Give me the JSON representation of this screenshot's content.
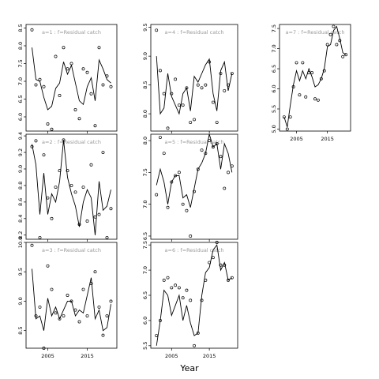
{
  "figure": {
    "xlabel": "Year"
  },
  "chart_data": [
    {
      "type": "scatter",
      "title": "a=1  :  f=Residual catch",
      "x_tick_labels": [
        "2005",
        "2015"
      ],
      "xlim": [
        1999.5,
        2022.5
      ],
      "ylim": [
        5.6,
        8.6
      ],
      "y_ticks": [
        6.0,
        6.5,
        7.0,
        7.5,
        8.0,
        8.5
      ],
      "y_tick_labels": [
        "6.0",
        "6.5",
        "7.0",
        "7.5",
        "8.0",
        "8.5"
      ],
      "x": [
        2001,
        2002,
        2003,
        2004,
        2005,
        2006,
        2007,
        2008,
        2009,
        2010,
        2011,
        2012,
        2013,
        2014,
        2015,
        2016,
        2017,
        2018,
        2019,
        2020,
        2021
      ],
      "line": [
        7.95,
        7.05,
        7.0,
        6.55,
        6.2,
        6.3,
        6.8,
        6.95,
        7.55,
        7.2,
        7.45,
        6.95,
        6.45,
        6.35,
        6.85,
        7.1,
        6.45,
        7.6,
        7.35,
        7.05,
        6.95
      ],
      "points": [
        8.45,
        6.9,
        7.05,
        6.85,
        5.8,
        5.65,
        7.7,
        6.6,
        7.95,
        7.35,
        7.5,
        6.2,
        5.95,
        7.35,
        7.25,
        6.65,
        5.75,
        7.95,
        6.9,
        7.15,
        6.85
      ]
    },
    {
      "type": "scatter",
      "title": "a=2  :  f=Residual catch",
      "x_tick_labels": [
        "2005",
        "2015"
      ],
      "xlim": [
        1999.5,
        2022.5
      ],
      "ylim": [
        8.15,
        9.42
      ],
      "y_ticks": [
        8.2,
        8.4,
        8.6,
        8.8,
        9.0,
        9.2,
        9.4
      ],
      "y_tick_labels": [
        "8.2",
        "8.4",
        "8.6",
        "8.8",
        "9.0",
        "9.2",
        "9.4"
      ],
      "x": [
        2001,
        2002,
        2003,
        2004,
        2005,
        2006,
        2007,
        2008,
        2009,
        2010,
        2011,
        2012,
        2013,
        2014,
        2015,
        2016,
        2017,
        2018,
        2019,
        2020,
        2021
      ],
      "line": [
        9.3,
        9.05,
        8.45,
        8.95,
        8.45,
        8.7,
        8.6,
        8.85,
        9.35,
        8.9,
        8.7,
        8.55,
        8.3,
        8.6,
        8.75,
        8.65,
        8.2,
        8.85,
        8.5,
        8.55,
        8.75
      ],
      "points": [
        9.27,
        9.34,
        8.17,
        9.17,
        8.65,
        8.4,
        8.78,
        8.98,
        9.35,
        8.98,
        8.8,
        8.72,
        8.33,
        8.78,
        8.37,
        9.05,
        8.42,
        8.45,
        9.2,
        8.17,
        8.52
      ]
    },
    {
      "type": "scatter",
      "title": "a=3  :  f=Residual catch",
      "x_tick_labels": [
        "2005",
        "2015"
      ],
      "xlim": [
        1999.5,
        2022.5
      ],
      "ylim": [
        8.2,
        10.0
      ],
      "y_ticks": [
        8.5,
        9.0,
        9.5,
        10.0
      ],
      "y_tick_labels": [
        "8.5",
        "9.0",
        "9.5",
        "10.0"
      ],
      "x": [
        2001,
        2002,
        2003,
        2004,
        2005,
        2006,
        2007,
        2008,
        2009,
        2010,
        2011,
        2012,
        2013,
        2014,
        2015,
        2016,
        2017,
        2018,
        2019,
        2020,
        2021
      ],
      "line": [
        9.55,
        8.7,
        8.75,
        8.5,
        9.05,
        8.75,
        8.9,
        8.7,
        8.85,
        9.0,
        9.0,
        8.75,
        8.85,
        8.8,
        9.1,
        9.4,
        8.7,
        8.85,
        8.5,
        8.55,
        8.95
      ],
      "points": [
        9.95,
        8.75,
        8.9,
        8.2,
        9.6,
        9.2,
        8.8,
        8.7,
        8.75,
        9.1,
        9.0,
        8.85,
        8.65,
        9.2,
        8.75,
        9.3,
        9.5,
        8.9,
        8.42,
        8.75,
        9.0
      ]
    },
    {
      "type": "scatter",
      "title": "a=4  :  f=Residual catch",
      "x_tick_labels": [
        "2005",
        "2015"
      ],
      "xlim": [
        1999.5,
        2022.5
      ],
      "ylim": [
        7.7,
        9.55
      ],
      "y_ticks": [
        8.0,
        8.5,
        9.0,
        9.5
      ],
      "y_tick_labels": [
        "8.0",
        "8.5",
        "9.0",
        "9.5"
      ],
      "x": [
        2001,
        2002,
        2003,
        2004,
        2005,
        2006,
        2007,
        2008,
        2009,
        2010,
        2011,
        2012,
        2013,
        2014,
        2015,
        2016,
        2017,
        2018,
        2019,
        2020,
        2021
      ],
      "line": [
        9.0,
        8.0,
        8.1,
        8.7,
        8.3,
        8.15,
        8.0,
        8.35,
        8.45,
        8.05,
        8.65,
        8.55,
        8.7,
        8.85,
        8.95,
        8.35,
        8.05,
        8.75,
        8.9,
        8.4,
        8.7
      ],
      "points": [
        9.45,
        8.75,
        8.35,
        7.75,
        8.35,
        8.6,
        8.15,
        8.15,
        8.45,
        7.85,
        7.9,
        8.5,
        8.45,
        8.5,
        8.9,
        8.2,
        7.85,
        8.7,
        8.4,
        8.5,
        8.7
      ]
    },
    {
      "type": "scatter",
      "title": "a=5  :  f=Residual catch",
      "x_tick_labels": [
        "2005",
        "2015"
      ],
      "xlim": [
        1999.5,
        2022.5
      ],
      "ylim": [
        6.45,
        8.1
      ],
      "y_ticks": [
        6.5,
        7.0,
        7.5,
        8.0
      ],
      "y_tick_labels": [
        "6.5",
        "7.0",
        "7.5",
        "8.0"
      ],
      "x": [
        2001,
        2002,
        2003,
        2004,
        2005,
        2006,
        2007,
        2008,
        2009,
        2010,
        2011,
        2012,
        2013,
        2014,
        2015,
        2016,
        2017,
        2018,
        2019,
        2020,
        2021
      ],
      "line": [
        7.3,
        7.55,
        7.35,
        7.0,
        7.35,
        7.45,
        7.45,
        7.1,
        7.15,
        6.95,
        7.25,
        7.55,
        7.65,
        7.8,
        8.1,
        7.9,
        7.95,
        7.55,
        7.95,
        7.8,
        7.5
      ],
      "points": [
        7.15,
        8.05,
        7.8,
        6.95,
        7.35,
        7.45,
        7.5,
        7.0,
        6.9,
        6.5,
        7.2,
        7.55,
        7.85,
        7.8,
        8.0,
        7.9,
        7.95,
        7.75,
        7.25,
        7.5,
        7.6
      ]
    },
    {
      "type": "scatter",
      "title": "a=6  :  f=Residual catch",
      "x_tick_labels": [
        "2005",
        "2015"
      ],
      "xlim": [
        1999.5,
        2022.5
      ],
      "ylim": [
        5.45,
        7.55
      ],
      "y_ticks": [
        5.5,
        6.0,
        6.5,
        7.0,
        7.5
      ],
      "y_tick_labels": [
        "5.5",
        "6.0",
        "6.5",
        "7.0",
        "7.5"
      ],
      "x": [
        2001,
        2002,
        2003,
        2004,
        2005,
        2006,
        2007,
        2008,
        2009,
        2010,
        2011,
        2012,
        2013,
        2014,
        2015,
        2016,
        2017,
        2018,
        2019,
        2020,
        2021
      ],
      "line": [
        5.5,
        6.0,
        6.6,
        6.5,
        6.1,
        6.3,
        6.5,
        6.0,
        6.3,
        5.95,
        5.7,
        5.75,
        6.5,
        6.95,
        7.05,
        7.4,
        7.5,
        7.0,
        7.15,
        6.8,
        6.85
      ],
      "points": [
        5.7,
        6.0,
        6.8,
        6.85,
        6.65,
        6.7,
        6.65,
        6.45,
        6.6,
        6.4,
        5.5,
        5.75,
        6.4,
        6.8,
        7.15,
        7.25,
        7.55,
        7.1,
        7.1,
        6.8,
        6.85
      ]
    },
    {
      "type": "scatter",
      "title": "a=7  :  f=Residual catch",
      "x_tick_labels": [
        "2005",
        "2015"
      ],
      "xlim": [
        1999.5,
        2022.5
      ],
      "ylim": [
        4.95,
        7.6
      ],
      "y_ticks": [
        5.0,
        5.5,
        6.0,
        6.5,
        7.0,
        7.5
      ],
      "y_tick_labels": [
        "5.0",
        "5.5",
        "6.0",
        "6.5",
        "7.0",
        "7.5"
      ],
      "x": [
        2001,
        2002,
        2003,
        2004,
        2005,
        2006,
        2007,
        2008,
        2009,
        2010,
        2011,
        2012,
        2013,
        2014,
        2015,
        2016,
        2017,
        2018,
        2019,
        2020,
        2021
      ],
      "line": [
        5.3,
        5.05,
        5.6,
        6.1,
        6.45,
        6.2,
        6.45,
        6.25,
        6.5,
        6.3,
        6.05,
        6.1,
        6.25,
        6.5,
        7.05,
        7.1,
        7.45,
        7.55,
        7.25,
        6.9,
        6.85
      ],
      "points": [
        5.3,
        5.0,
        5.3,
        6.05,
        6.65,
        5.85,
        6.65,
        5.8,
        6.4,
        6.4,
        5.75,
        5.72,
        6.25,
        6.45,
        7.1,
        7.35,
        7.55,
        7.1,
        7.2,
        6.8,
        6.85
      ]
    }
  ]
}
